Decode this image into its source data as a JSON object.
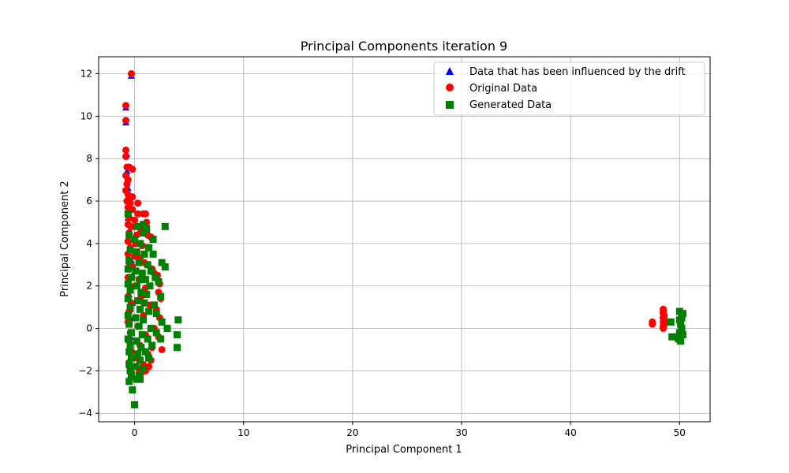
{
  "chart_data": {
    "type": "scatter",
    "title": "Principal Components iteration 9",
    "xlabel": "Principal Component 1",
    "ylabel": "Principal Component 2",
    "xlim": [
      -3.3,
      52.8
    ],
    "ylim": [
      -4.4,
      12.8
    ],
    "xticks": [
      0,
      10,
      20,
      30,
      40,
      50
    ],
    "yticks": [
      -4,
      -2,
      0,
      2,
      4,
      6,
      8,
      10,
      12
    ],
    "grid": true,
    "legend_position": "top-right",
    "series": [
      {
        "name": "Data that has been influenced by the drift",
        "marker": "triangle",
        "color": "#0000ff",
        "points": [
          [
            -0.8,
            9.7
          ],
          [
            -0.8,
            10.4
          ],
          [
            -0.3,
            11.9
          ],
          [
            -0.7,
            8.2
          ],
          [
            -0.7,
            7.4
          ],
          [
            -0.6,
            6.6
          ],
          [
            -0.5,
            6.0
          ],
          [
            -0.6,
            5.2
          ],
          [
            -0.5,
            4.6
          ],
          [
            -0.4,
            3.9
          ],
          [
            -0.3,
            3.2
          ],
          [
            -0.2,
            2.5
          ],
          [
            -0.6,
            2.3
          ],
          [
            -0.5,
            1.6
          ],
          [
            -0.4,
            0.9
          ],
          [
            -0.5,
            0.2
          ],
          [
            -0.4,
            -0.4
          ],
          [
            -0.3,
            -1.0
          ],
          [
            -0.4,
            -1.6
          ],
          [
            -0.3,
            -2.2
          ],
          [
            -0.2,
            1.2
          ],
          [
            -0.1,
            0.5
          ],
          [
            48.5,
            0.1
          ],
          [
            48.6,
            0.4
          ]
        ]
      },
      {
        "name": "Original Data",
        "marker": "circle",
        "color": "#ff0000",
        "points": [
          [
            -0.3,
            12.0
          ],
          [
            -0.8,
            10.5
          ],
          [
            -0.8,
            9.8
          ],
          [
            -0.8,
            8.4
          ],
          [
            -0.8,
            8.1
          ],
          [
            -0.7,
            7.6
          ],
          [
            -0.5,
            7.6
          ],
          [
            -0.2,
            7.5
          ],
          [
            -0.8,
            7.2
          ],
          [
            -0.6,
            7.0
          ],
          [
            -0.7,
            6.8
          ],
          [
            -0.8,
            6.5
          ],
          [
            -0.6,
            6.3
          ],
          [
            -0.2,
            6.2
          ],
          [
            -0.7,
            6.0
          ],
          [
            -0.4,
            5.9
          ],
          [
            0.3,
            5.9
          ],
          [
            -0.6,
            5.7
          ],
          [
            -0.2,
            5.6
          ],
          [
            0.3,
            5.4
          ],
          [
            0.8,
            5.4
          ],
          [
            1.0,
            5.4
          ],
          [
            -0.5,
            5.2
          ],
          [
            0.0,
            5.1
          ],
          [
            1.1,
            5.0
          ],
          [
            -0.6,
            4.9
          ],
          [
            -0.3,
            4.8
          ],
          [
            0.6,
            4.6
          ],
          [
            0.9,
            4.6
          ],
          [
            -0.5,
            4.5
          ],
          [
            0.2,
            4.4
          ],
          [
            1.2,
            4.4
          ],
          [
            1.5,
            4.3
          ],
          [
            -0.6,
            4.1
          ],
          [
            0.1,
            4.0
          ],
          [
            0.7,
            3.9
          ],
          [
            -0.4,
            3.8
          ],
          [
            1.3,
            3.8
          ],
          [
            -0.6,
            3.5
          ],
          [
            0.0,
            3.4
          ],
          [
            0.5,
            3.3
          ],
          [
            -0.5,
            3.1
          ],
          [
            0.9,
            3.1
          ],
          [
            1.2,
            3.0
          ],
          [
            -0.2,
            2.9
          ],
          [
            1.6,
            2.8
          ],
          [
            1.8,
            2.6
          ],
          [
            2.1,
            2.5
          ],
          [
            -0.6,
            2.4
          ],
          [
            0.4,
            2.3
          ],
          [
            2.3,
            2.1
          ],
          [
            -0.4,
            2.0
          ],
          [
            1.0,
            1.9
          ],
          [
            2.2,
            1.7
          ],
          [
            -0.6,
            1.5
          ],
          [
            0.6,
            1.5
          ],
          [
            2.4,
            1.4
          ],
          [
            -0.3,
            1.2
          ],
          [
            1.4,
            1.1
          ],
          [
            2.0,
            0.9
          ],
          [
            -0.5,
            0.8
          ],
          [
            0.8,
            0.6
          ],
          [
            2.3,
            0.5
          ],
          [
            -0.6,
            0.3
          ],
          [
            0.3,
            0.1
          ],
          [
            1.8,
            0.0
          ],
          [
            -0.4,
            -0.2
          ],
          [
            1.0,
            -0.3
          ],
          [
            2.2,
            -0.4
          ],
          [
            -0.5,
            -0.6
          ],
          [
            0.5,
            -0.8
          ],
          [
            1.6,
            -0.9
          ],
          [
            2.5,
            -1.0
          ],
          [
            -0.3,
            -1.1
          ],
          [
            1.2,
            -1.2
          ],
          [
            0.2,
            -1.4
          ],
          [
            1.5,
            -1.5
          ],
          [
            -0.5,
            -1.6
          ],
          [
            0.8,
            -1.7
          ],
          [
            1.3,
            -1.8
          ],
          [
            0.4,
            -1.9
          ],
          [
            1.0,
            -2.0
          ],
          [
            -0.3,
            -2.1
          ],
          [
            0.6,
            -2.1
          ],
          [
            47.5,
            0.2
          ],
          [
            47.5,
            0.3
          ],
          [
            48.5,
            0.1
          ],
          [
            48.5,
            0.3
          ],
          [
            48.5,
            0.5
          ],
          [
            48.5,
            0.7
          ],
          [
            48.5,
            0.8
          ],
          [
            48.5,
            0.9
          ],
          [
            48.6,
            0.6
          ],
          [
            48.6,
            0.4
          ],
          [
            48.6,
            0.2
          ],
          [
            48.5,
            0.0
          ]
        ]
      },
      {
        "name": "Generated Data",
        "marker": "square",
        "color": "#008000",
        "points": [
          [
            -0.6,
            5.4
          ],
          [
            0.2,
            4.8
          ],
          [
            0.8,
            4.9
          ],
          [
            1.1,
            4.7
          ],
          [
            0.8,
            4.5
          ],
          [
            1.7,
            4.2
          ],
          [
            2.8,
            4.8
          ],
          [
            -0.5,
            4.4
          ],
          [
            0.0,
            4.2
          ],
          [
            0.5,
            4.0
          ],
          [
            1.3,
            3.8
          ],
          [
            -0.4,
            3.7
          ],
          [
            0.2,
            3.6
          ],
          [
            0.9,
            3.5
          ],
          [
            1.7,
            3.5
          ],
          [
            -0.5,
            3.2
          ],
          [
            0.4,
            3.1
          ],
          [
            1.2,
            3.0
          ],
          [
            2.5,
            3.1
          ],
          [
            2.8,
            2.9
          ],
          [
            -0.6,
            2.8
          ],
          [
            0.1,
            2.7
          ],
          [
            0.7,
            2.6
          ],
          [
            1.5,
            2.7
          ],
          [
            -0.3,
            2.4
          ],
          [
            0.5,
            2.3
          ],
          [
            1.0,
            2.3
          ],
          [
            1.9,
            2.4
          ],
          [
            -0.6,
            2.1
          ],
          [
            0.2,
            2.0
          ],
          [
            1.4,
            2.0
          ],
          [
            2.2,
            2.2
          ],
          [
            -0.4,
            1.8
          ],
          [
            0.6,
            1.7
          ],
          [
            1.1,
            1.6
          ],
          [
            2.4,
            1.5
          ],
          [
            -0.6,
            1.4
          ],
          [
            0.3,
            1.3
          ],
          [
            0.9,
            1.2
          ],
          [
            1.8,
            1.1
          ],
          [
            -0.4,
            1.0
          ],
          [
            0.5,
            0.9
          ],
          [
            1.3,
            0.8
          ],
          [
            2.0,
            0.7
          ],
          [
            -0.6,
            0.6
          ],
          [
            0.1,
            0.5
          ],
          [
            0.8,
            0.4
          ],
          [
            2.5,
            0.3
          ],
          [
            4.0,
            0.4
          ],
          [
            3.0,
            0.0
          ],
          [
            -0.5,
            0.2
          ],
          [
            0.4,
            0.1
          ],
          [
            1.5,
            0.0
          ],
          [
            -0.3,
            -0.2
          ],
          [
            0.7,
            -0.3
          ],
          [
            2.0,
            -0.2
          ],
          [
            3.9,
            -0.3
          ],
          [
            -0.6,
            -0.5
          ],
          [
            0.2,
            -0.6
          ],
          [
            1.2,
            -0.5
          ],
          [
            2.4,
            -0.5
          ],
          [
            -0.4,
            -0.8
          ],
          [
            0.6,
            -0.9
          ],
          [
            1.6,
            -0.8
          ],
          [
            3.9,
            -0.9
          ],
          [
            -0.5,
            -1.1
          ],
          [
            0.3,
            -1.2
          ],
          [
            1.0,
            -1.1
          ],
          [
            -0.3,
            -1.4
          ],
          [
            0.5,
            -1.5
          ],
          [
            1.3,
            -1.4
          ],
          [
            -0.5,
            -1.7
          ],
          [
            0.1,
            -1.8
          ],
          [
            0.8,
            -1.9
          ],
          [
            -0.4,
            -2.0
          ],
          [
            0.4,
            -2.2
          ],
          [
            -0.3,
            -2.3
          ],
          [
            0.2,
            -2.4
          ],
          [
            0.5,
            -2.4
          ],
          [
            -0.5,
            -2.5
          ],
          [
            -0.2,
            -2.9
          ],
          [
            0.0,
            -3.6
          ],
          [
            50.0,
            0.8
          ],
          [
            50.3,
            0.7
          ],
          [
            50.2,
            0.5
          ],
          [
            50.1,
            0.2
          ],
          [
            50.2,
            0.0
          ],
          [
            50.0,
            -0.2
          ],
          [
            49.8,
            -0.4
          ],
          [
            49.9,
            -0.5
          ],
          [
            50.1,
            -0.6
          ],
          [
            50.3,
            -0.3
          ],
          [
            49.2,
            0.3
          ],
          [
            49.3,
            -0.4
          ],
          [
            50.2,
            0.6
          ],
          [
            50.0,
            0.4
          ]
        ]
      }
    ]
  }
}
